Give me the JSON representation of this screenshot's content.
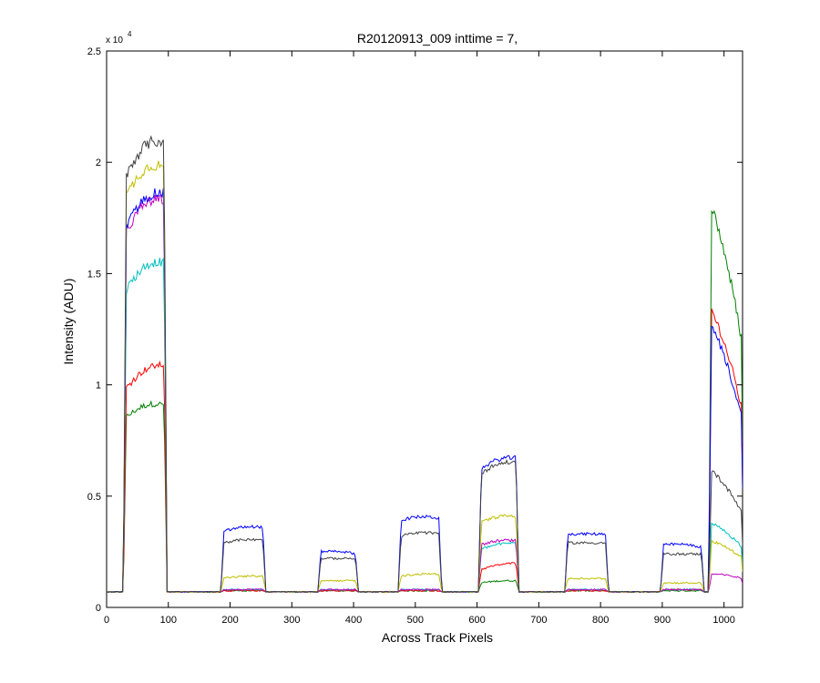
{
  "chart_data": {
    "type": "line",
    "title": "R20120913_009 inttime = 7,",
    "xlabel": "Across Track Pixels",
    "ylabel": "Intensity (ADU)",
    "y_multiplier_base": "x 10",
    "y_multiplier_exp": "4",
    "xlim": [
      0,
      1030
    ],
    "ylim": [
      0,
      25000
    ],
    "xticks": [
      0,
      100,
      200,
      300,
      400,
      500,
      600,
      700,
      800,
      900,
      1000
    ],
    "xtick_labels": [
      "0",
      "100",
      "200",
      "300",
      "400",
      "500",
      "600",
      "700",
      "800",
      "900",
      "1000"
    ],
    "yticks": [
      0,
      5000,
      10000,
      15000,
      20000,
      25000
    ],
    "ytick_labels": [
      "0",
      "0.5",
      "1",
      "1.5",
      "2",
      "2.5"
    ],
    "grid": false,
    "baseline": 700,
    "noise": 150,
    "series": [
      {
        "color": "#008000",
        "plateaus": [
          {
            "x0": 30,
            "x1": 95,
            "start": 8500,
            "end": 9100
          },
          {
            "x0": 188,
            "x1": 255,
            "start": 750,
            "end": 750
          },
          {
            "x0": 345,
            "x1": 405,
            "start": 750,
            "end": 750
          },
          {
            "x0": 475,
            "x1": 540,
            "start": 750,
            "end": 750
          },
          {
            "x0": 605,
            "x1": 665,
            "start": 1100,
            "end": 1200
          },
          {
            "x0": 745,
            "x1": 810,
            "start": 750,
            "end": 750
          },
          {
            "x0": 900,
            "x1": 965,
            "start": 750,
            "end": 750
          },
          {
            "x0": 978,
            "x1": 1030,
            "start": 18200,
            "end": 11800
          }
        ]
      },
      {
        "color": "#ff0000",
        "plateaus": [
          {
            "x0": 30,
            "x1": 95,
            "start": 9800,
            "end": 10900
          },
          {
            "x0": 188,
            "x1": 255,
            "start": 750,
            "end": 750
          },
          {
            "x0": 345,
            "x1": 405,
            "start": 750,
            "end": 750
          },
          {
            "x0": 475,
            "x1": 540,
            "start": 750,
            "end": 750
          },
          {
            "x0": 605,
            "x1": 665,
            "start": 1700,
            "end": 2000
          },
          {
            "x0": 745,
            "x1": 810,
            "start": 750,
            "end": 750
          },
          {
            "x0": 900,
            "x1": 965,
            "start": 800,
            "end": 800
          },
          {
            "x0": 978,
            "x1": 1030,
            "start": 13500,
            "end": 8800
          }
        ]
      },
      {
        "color": "#00bfbf",
        "plateaus": [
          {
            "x0": 30,
            "x1": 95,
            "start": 14200,
            "end": 15500
          },
          {
            "x0": 188,
            "x1": 255,
            "start": 800,
            "end": 800
          },
          {
            "x0": 345,
            "x1": 405,
            "start": 800,
            "end": 800
          },
          {
            "x0": 475,
            "x1": 540,
            "start": 800,
            "end": 800
          },
          {
            "x0": 605,
            "x1": 665,
            "start": 2600,
            "end": 2900
          },
          {
            "x0": 745,
            "x1": 810,
            "start": 800,
            "end": 800
          },
          {
            "x0": 900,
            "x1": 965,
            "start": 800,
            "end": 800
          },
          {
            "x0": 978,
            "x1": 1030,
            "start": 3800,
            "end": 2700
          }
        ]
      },
      {
        "color": "#bf00bf",
        "plateaus": [
          {
            "x0": 30,
            "x1": 95,
            "start": 16800,
            "end": 18300
          },
          {
            "x0": 188,
            "x1": 255,
            "start": 800,
            "end": 800
          },
          {
            "x0": 345,
            "x1": 405,
            "start": 800,
            "end": 800
          },
          {
            "x0": 475,
            "x1": 540,
            "start": 800,
            "end": 800
          },
          {
            "x0": 605,
            "x1": 665,
            "start": 2800,
            "end": 3000
          },
          {
            "x0": 745,
            "x1": 810,
            "start": 800,
            "end": 800
          },
          {
            "x0": 900,
            "x1": 965,
            "start": 800,
            "end": 800
          },
          {
            "x0": 978,
            "x1": 1030,
            "start": 1500,
            "end": 1300
          }
        ]
      },
      {
        "color": "#0000ff",
        "plateaus": [
          {
            "x0": 30,
            "x1": 95,
            "start": 17000,
            "end": 18600
          },
          {
            "x0": 188,
            "x1": 255,
            "start": 3400,
            "end": 3600
          },
          {
            "x0": 345,
            "x1": 405,
            "start": 2500,
            "end": 2400
          },
          {
            "x0": 475,
            "x1": 540,
            "start": 3900,
            "end": 4000
          },
          {
            "x0": 605,
            "x1": 665,
            "start": 6200,
            "end": 6700
          },
          {
            "x0": 745,
            "x1": 810,
            "start": 3300,
            "end": 3300
          },
          {
            "x0": 900,
            "x1": 965,
            "start": 2800,
            "end": 2700
          },
          {
            "x0": 978,
            "x1": 1030,
            "start": 12800,
            "end": 8400
          }
        ]
      },
      {
        "color": "#bfbf00",
        "plateaus": [
          {
            "x0": 30,
            "x1": 95,
            "start": 18400,
            "end": 19800
          },
          {
            "x0": 188,
            "x1": 255,
            "start": 1300,
            "end": 1400
          },
          {
            "x0": 345,
            "x1": 405,
            "start": 1200,
            "end": 1200
          },
          {
            "x0": 475,
            "x1": 540,
            "start": 1400,
            "end": 1500
          },
          {
            "x0": 605,
            "x1": 665,
            "start": 3800,
            "end": 4100
          },
          {
            "x0": 745,
            "x1": 810,
            "start": 1300,
            "end": 1300
          },
          {
            "x0": 900,
            "x1": 965,
            "start": 1100,
            "end": 1100
          },
          {
            "x0": 978,
            "x1": 1030,
            "start": 3000,
            "end": 2200
          }
        ]
      },
      {
        "color": "#404040",
        "plateaus": [
          {
            "x0": 30,
            "x1": 95,
            "start": 19300,
            "end": 20900
          },
          {
            "x0": 188,
            "x1": 255,
            "start": 2900,
            "end": 3000
          },
          {
            "x0": 345,
            "x1": 405,
            "start": 2200,
            "end": 2200
          },
          {
            "x0": 475,
            "x1": 540,
            "start": 3200,
            "end": 3300
          },
          {
            "x0": 605,
            "x1": 665,
            "start": 6000,
            "end": 6500
          },
          {
            "x0": 745,
            "x1": 810,
            "start": 2900,
            "end": 2900
          },
          {
            "x0": 900,
            "x1": 965,
            "start": 2400,
            "end": 2400
          },
          {
            "x0": 978,
            "x1": 1030,
            "start": 6200,
            "end": 4200
          }
        ]
      }
    ]
  }
}
